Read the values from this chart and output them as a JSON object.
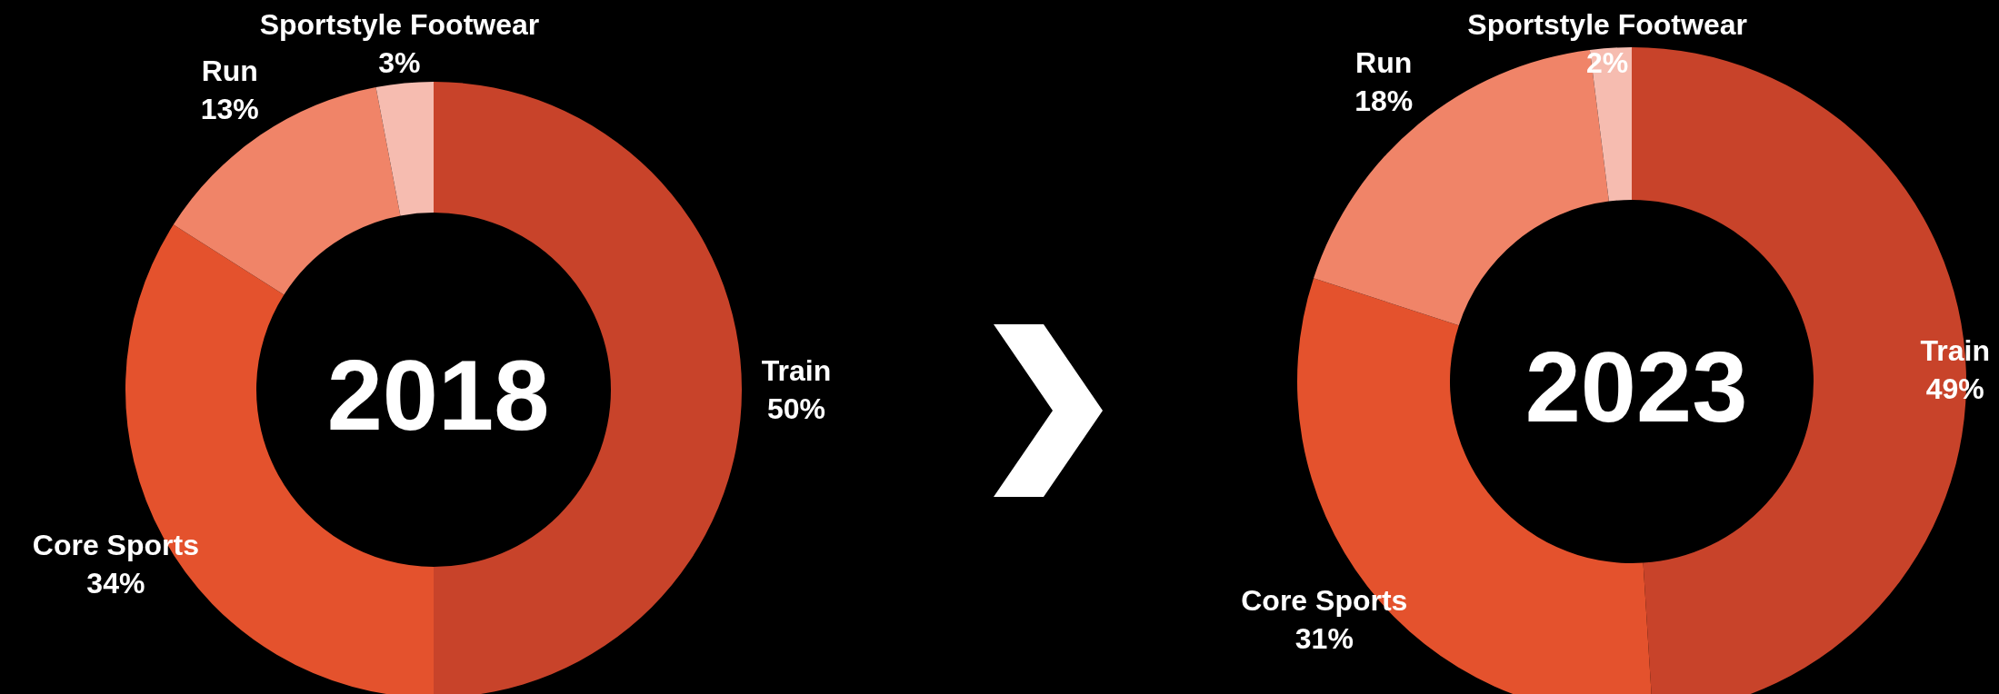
{
  "chart_data": [
    {
      "type": "donut",
      "title": "2018",
      "categories": [
        "Train",
        "Core Sports",
        "Run",
        "Sportstyle Footwear"
      ],
      "values": [
        50,
        34,
        13,
        3
      ],
      "value_labels": [
        "50%",
        "34%",
        "13%",
        "3%"
      ],
      "colors": [
        "#c8432a",
        "#e4522d",
        "#f08468",
        "#f6bcb0"
      ],
      "legend": false
    },
    {
      "type": "donut",
      "title": "2023",
      "categories": [
        "Train",
        "Core Sports",
        "Run",
        "Sportstyle Footwear"
      ],
      "values": [
        49,
        31,
        18,
        2
      ],
      "value_labels": [
        "49%",
        "31%",
        "18%",
        "2%"
      ],
      "colors": [
        "#c8432a",
        "#e4522d",
        "#f08468",
        "#f6bcb0"
      ],
      "legend": false
    }
  ]
}
